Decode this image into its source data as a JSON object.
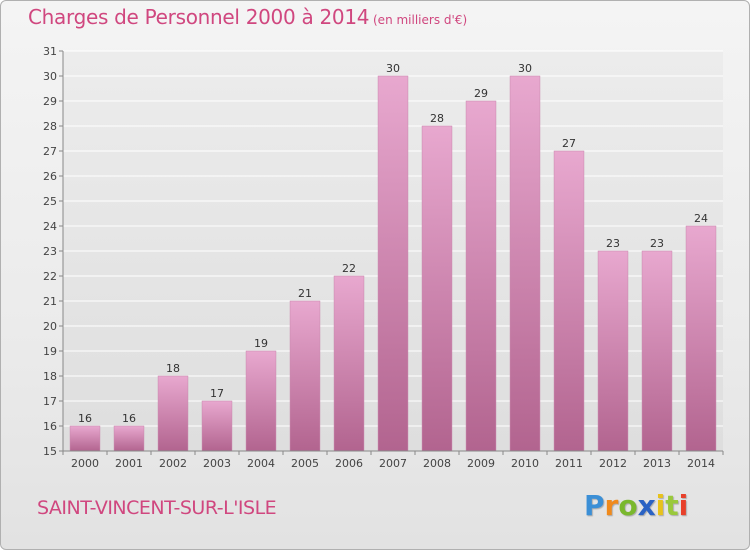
{
  "title": "Charges de Personnel 2000 à 2014",
  "subtitle": "(en milliers d'€)",
  "commune": "SAINT-VINCENT-SUR-L'ISLE",
  "logo": {
    "text": "Proxiti",
    "letters": [
      "P",
      "r",
      "o",
      "x",
      "i",
      "t",
      "i"
    ]
  },
  "colors": {
    "bar_top": "#e8a8cf",
    "bar_bottom": "#b2648f",
    "title": "#d0477f",
    "grid": "#ffffff"
  },
  "chart_data": {
    "type": "bar",
    "categories": [
      "2000",
      "2001",
      "2002",
      "2003",
      "2004",
      "2005",
      "2006",
      "2007",
      "2008",
      "2009",
      "2010",
      "2011",
      "2012",
      "2013",
      "2014"
    ],
    "values": [
      16,
      16,
      18,
      17,
      19,
      21,
      22,
      30,
      28,
      29,
      30,
      27,
      23,
      23,
      24
    ],
    "ylim": [
      15,
      31
    ],
    "yticks": [
      15,
      16,
      17,
      18,
      19,
      20,
      21,
      22,
      23,
      24,
      25,
      26,
      27,
      28,
      29,
      30,
      31
    ],
    "grid": true,
    "legend": "none"
  }
}
